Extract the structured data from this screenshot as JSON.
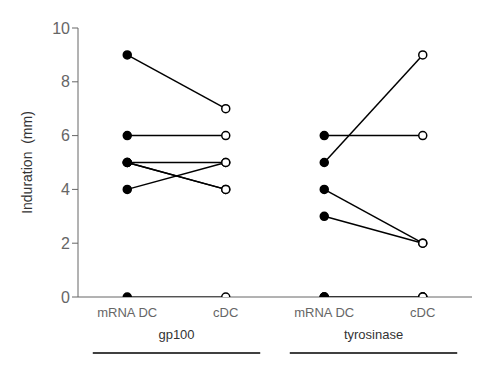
{
  "chart_data": {
    "type": "line",
    "ylabel": "Induration  (mm)",
    "categories": [
      "mRNA DC",
      "cDC",
      "mRNA DC",
      "cDC"
    ],
    "groups": [
      {
        "label": "gp100",
        "pairs": [
          [
            9,
            7
          ],
          [
            6,
            6
          ],
          [
            5,
            5
          ],
          [
            5,
            4
          ],
          [
            5,
            4
          ],
          [
            4,
            5
          ],
          [
            0,
            0
          ]
        ]
      },
      {
        "label": "tyrosinase",
        "pairs": [
          [
            6,
            6
          ],
          [
            5,
            9
          ],
          [
            4,
            2
          ],
          [
            3,
            2
          ],
          [
            0,
            0
          ],
          [
            0,
            0
          ],
          [
            0,
            0
          ]
        ]
      }
    ],
    "ylim": [
      0,
      10
    ],
    "yticks": [
      0,
      2,
      4,
      6,
      8,
      10
    ],
    "color": "#000000",
    "marker": "circle"
  }
}
